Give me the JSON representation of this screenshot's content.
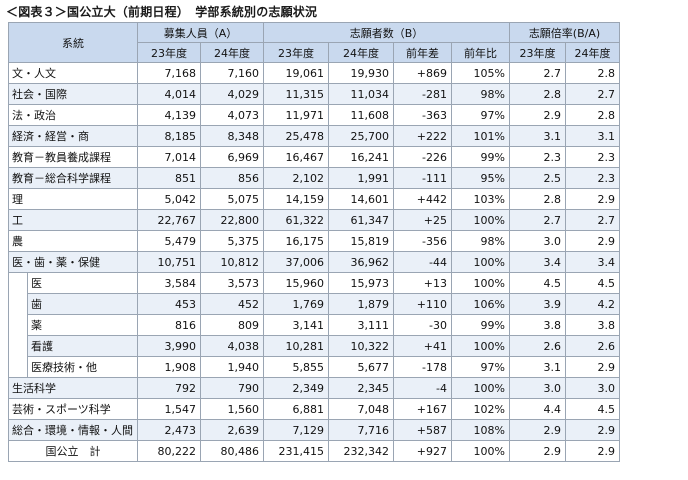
{
  "title": "＜図表３＞国公立大（前期日程）　学部系統別の志願状況",
  "headers": {
    "category": "系統",
    "recruit": "募集人員（A）",
    "applicants": "志願者数（B）",
    "ratio": "志願倍率(B/A)",
    "y23": "23年度",
    "y24": "24年度",
    "diff": "前年差",
    "pct": "前年比"
  },
  "rows": [
    {
      "name": "文・人文",
      "r23": "7,168",
      "r24": "7,160",
      "a23": "19,061",
      "a24": "19,930",
      "diff": "+869",
      "pct": "105%",
      "b23": "2.7",
      "b24": "2.8"
    },
    {
      "name": "社会・国際",
      "r23": "4,014",
      "r24": "4,029",
      "a23": "11,315",
      "a24": "11,034",
      "diff": "-281",
      "pct": "98%",
      "b23": "2.8",
      "b24": "2.7"
    },
    {
      "name": "法・政治",
      "r23": "4,139",
      "r24": "4,073",
      "a23": "11,971",
      "a24": "11,608",
      "diff": "-363",
      "pct": "97%",
      "b23": "2.9",
      "b24": "2.8"
    },
    {
      "name": "経済・経営・商",
      "r23": "8,185",
      "r24": "8,348",
      "a23": "25,478",
      "a24": "25,700",
      "diff": "+222",
      "pct": "101%",
      "b23": "3.1",
      "b24": "3.1"
    },
    {
      "name": "教育－教員養成課程",
      "r23": "7,014",
      "r24": "6,969",
      "a23": "16,467",
      "a24": "16,241",
      "diff": "-226",
      "pct": "99%",
      "b23": "2.3",
      "b24": "2.3"
    },
    {
      "name": "教育－総合科学課程",
      "r23": "851",
      "r24": "856",
      "a23": "2,102",
      "a24": "1,991",
      "diff": "-111",
      "pct": "95%",
      "b23": "2.5",
      "b24": "2.3"
    },
    {
      "name": "理",
      "r23": "5,042",
      "r24": "5,075",
      "a23": "14,159",
      "a24": "14,601",
      "diff": "+442",
      "pct": "103%",
      "b23": "2.8",
      "b24": "2.9"
    },
    {
      "name": "工",
      "r23": "22,767",
      "r24": "22,800",
      "a23": "61,322",
      "a24": "61,347",
      "diff": "+25",
      "pct": "100%",
      "b23": "2.7",
      "b24": "2.7"
    },
    {
      "name": "農",
      "r23": "5,479",
      "r24": "5,375",
      "a23": "16,175",
      "a24": "15,819",
      "diff": "-356",
      "pct": "98%",
      "b23": "3.0",
      "b24": "2.9"
    },
    {
      "name": "医・歯・薬・保健",
      "r23": "10,751",
      "r24": "10,812",
      "a23": "37,006",
      "a24": "36,962",
      "diff": "-44",
      "pct": "100%",
      "b23": "3.4",
      "b24": "3.4"
    },
    {
      "name": "医",
      "sub": true,
      "r23": "3,584",
      "r24": "3,573",
      "a23": "15,960",
      "a24": "15,973",
      "diff": "+13",
      "pct": "100%",
      "b23": "4.5",
      "b24": "4.5"
    },
    {
      "name": "歯",
      "sub": true,
      "r23": "453",
      "r24": "452",
      "a23": "1,769",
      "a24": "1,879",
      "diff": "+110",
      "pct": "106%",
      "b23": "3.9",
      "b24": "4.2"
    },
    {
      "name": "薬",
      "sub": true,
      "r23": "816",
      "r24": "809",
      "a23": "3,141",
      "a24": "3,111",
      "diff": "-30",
      "pct": "99%",
      "b23": "3.8",
      "b24": "3.8"
    },
    {
      "name": "看護",
      "sub": true,
      "r23": "3,990",
      "r24": "4,038",
      "a23": "10,281",
      "a24": "10,322",
      "diff": "+41",
      "pct": "100%",
      "b23": "2.6",
      "b24": "2.6"
    },
    {
      "name": "医療技術・他",
      "sub": true,
      "r23": "1,908",
      "r24": "1,940",
      "a23": "5,855",
      "a24": "5,677",
      "diff": "-178",
      "pct": "97%",
      "b23": "3.1",
      "b24": "2.9"
    },
    {
      "name": "生活科学",
      "r23": "792",
      "r24": "790",
      "a23": "2,349",
      "a24": "2,345",
      "diff": "-4",
      "pct": "100%",
      "b23": "3.0",
      "b24": "3.0"
    },
    {
      "name": "芸術・スポーツ科学",
      "r23": "1,547",
      "r24": "1,560",
      "a23": "6,881",
      "a24": "7,048",
      "diff": "+167",
      "pct": "102%",
      "b23": "4.4",
      "b24": "4.5"
    },
    {
      "name": "総合・環境・情報・人間",
      "r23": "2,473",
      "r24": "2,639",
      "a23": "7,129",
      "a24": "7,716",
      "diff": "+587",
      "pct": "108%",
      "b23": "2.9",
      "b24": "2.9"
    }
  ],
  "total": {
    "name": "国公立　計",
    "r23": "80,222",
    "r24": "80,486",
    "a23": "231,415",
    "a24": "232,342",
    "diff": "+927",
    "pct": "100%",
    "b23": "2.9",
    "b24": "2.9"
  }
}
